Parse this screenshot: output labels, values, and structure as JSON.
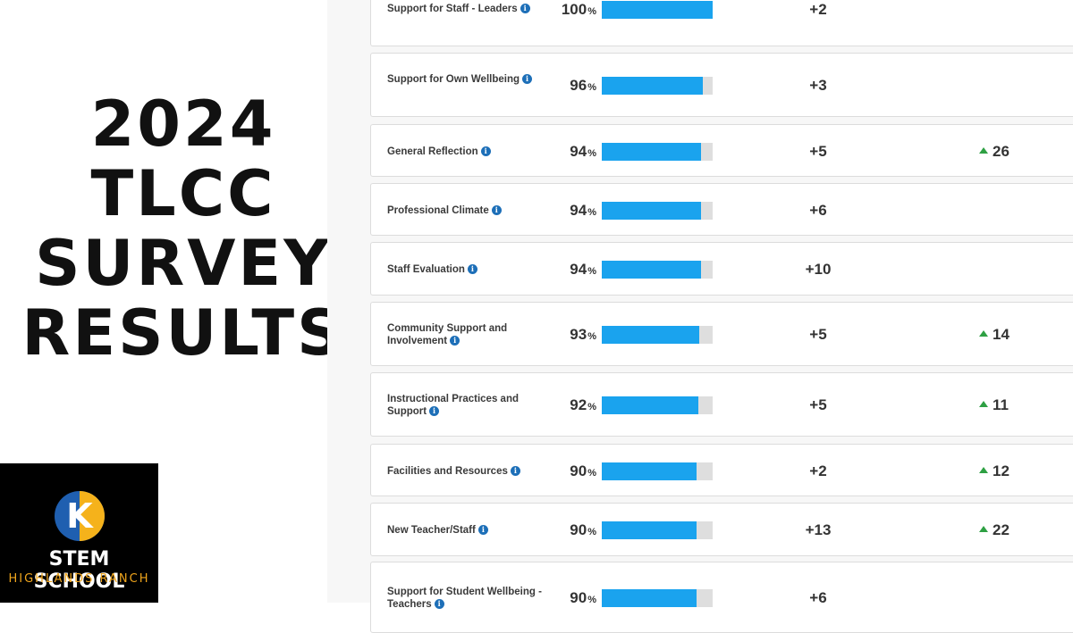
{
  "title_lines": [
    "2024",
    "TLCC",
    "SURVEY",
    "RESULTS"
  ],
  "logo": {
    "name": "STEM SCHOOL",
    "sub": "HIGHLANDS RANCH",
    "icon": "k-sun-logo-icon",
    "colors": {
      "blue": "#1f5fb0",
      "gold": "#f5b21b"
    }
  },
  "accent_color": "#1aa3ee",
  "rows": [
    {
      "label": "Support for Staff - Leaders",
      "pct": "100",
      "pct_value": 100,
      "delta": "+2",
      "trend": ""
    },
    {
      "label": "Support for Own Wellbeing",
      "pct": "96",
      "pct_value": 96,
      "delta": "+3",
      "trend": ""
    },
    {
      "label": "General Reflection",
      "pct": "94",
      "pct_value": 94,
      "delta": "+5",
      "trend": "26"
    },
    {
      "label": "Professional Climate",
      "pct": "94",
      "pct_value": 94,
      "delta": "+6",
      "trend": ""
    },
    {
      "label": "Staff Evaluation",
      "pct": "94",
      "pct_value": 94,
      "delta": "+10",
      "trend": ""
    },
    {
      "label": "Community Support and Involvement",
      "pct": "93",
      "pct_value": 93,
      "delta": "+5",
      "trend": "14"
    },
    {
      "label": "Instructional Practices and Support",
      "pct": "92",
      "pct_value": 92,
      "delta": "+5",
      "trend": "11"
    },
    {
      "label": "Facilities and Resources",
      "pct": "90",
      "pct_value": 90,
      "delta": "+2",
      "trend": "12"
    },
    {
      "label": "New Teacher/Staff",
      "pct": "90",
      "pct_value": 90,
      "delta": "+13",
      "trend": "22"
    },
    {
      "label": "Support for Student Wellbeing - Teachers",
      "pct": "90",
      "pct_value": 90,
      "delta": "+6",
      "trend": ""
    }
  ]
}
